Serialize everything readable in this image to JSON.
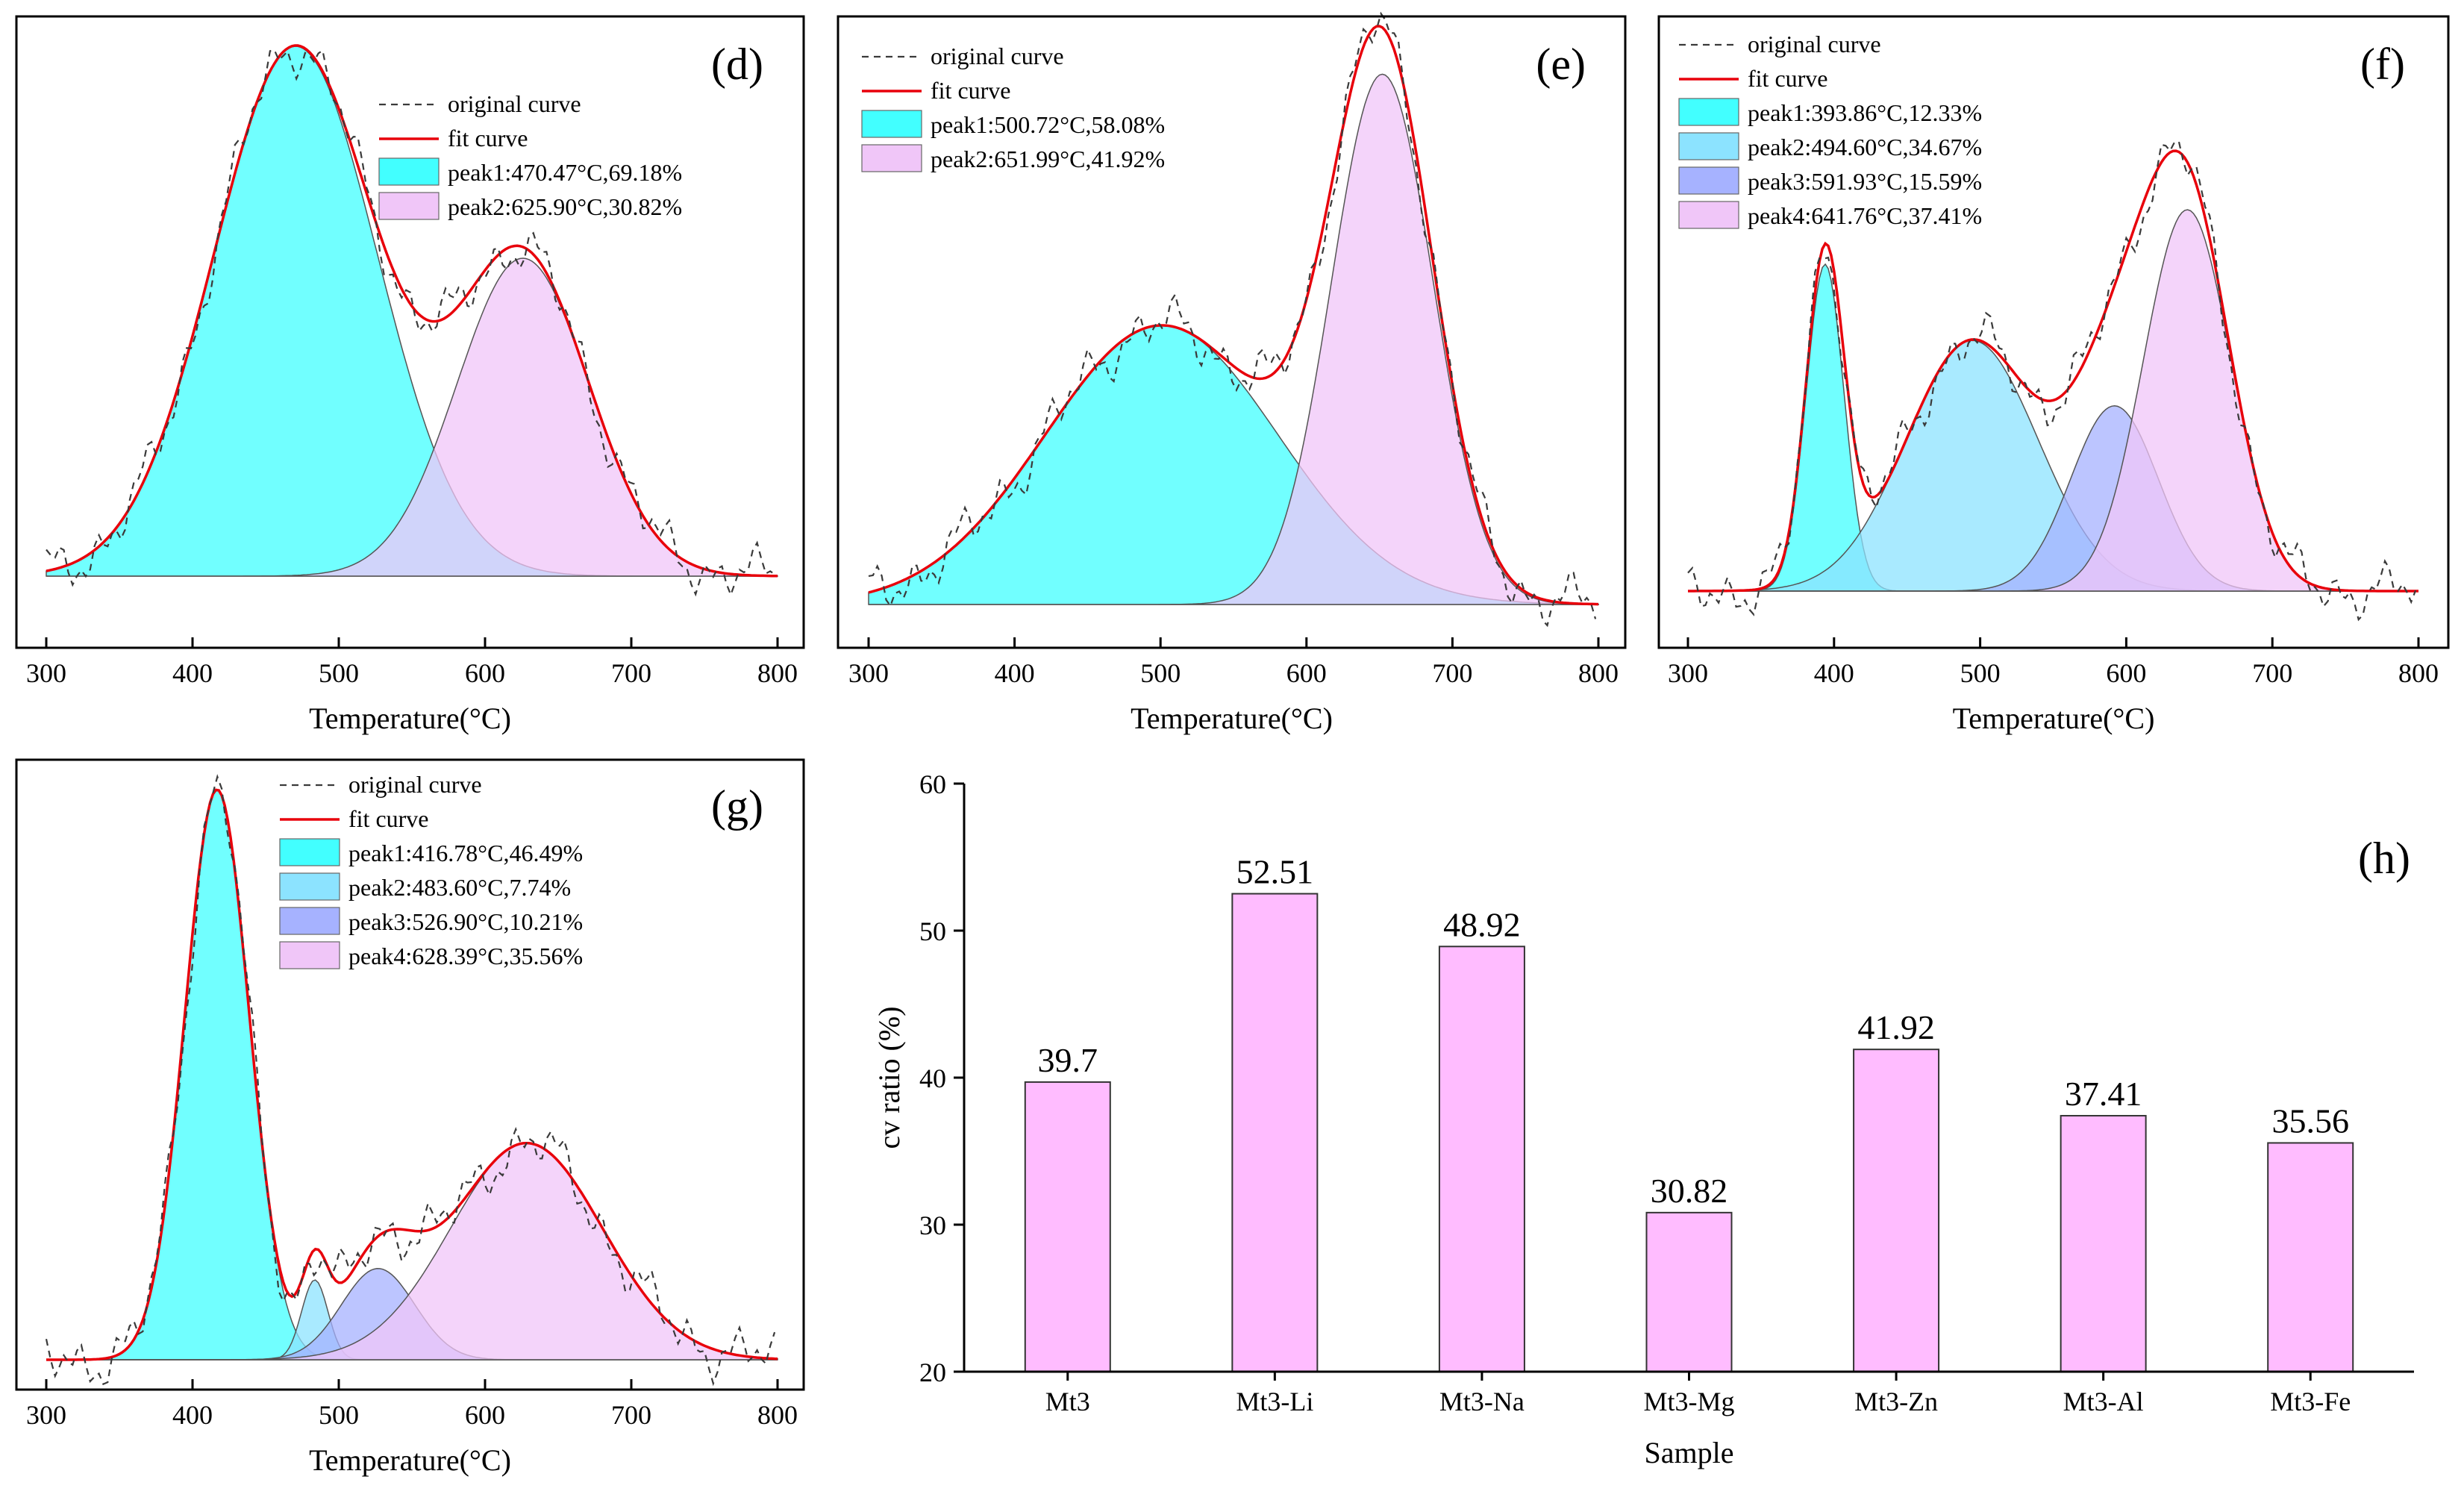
{
  "chart_data": [
    {
      "id": "d",
      "type": "area",
      "panel_label": "(d)",
      "xlabel": "Temperature(°C)",
      "xlim": [
        300,
        800
      ],
      "xticks": [
        300,
        400,
        500,
        600,
        700,
        800
      ],
      "ylim": [
        -0.14,
        1.17
      ],
      "legend": {
        "original": "original curve",
        "fit": "fit curve",
        "position": "top-center"
      },
      "peaks": [
        {
          "label": "peak1:470.47°C,69.18%",
          "center": 470.47,
          "sigma": 56,
          "amp": 1.0,
          "color": "#42ffff"
        },
        {
          "label": "peak2:625.90°C,30.82%",
          "center": 625.9,
          "sigma": 45,
          "amp": 0.6,
          "color": "#f0c6f8"
        }
      ]
    },
    {
      "id": "e",
      "type": "area",
      "panel_label": "(e)",
      "xlabel": "Temperature(°C)",
      "xlim": [
        300,
        800
      ],
      "xticks": [
        300,
        400,
        500,
        600,
        700,
        800
      ],
      "ylim": [
        -0.02,
        1.1
      ],
      "legend": {
        "original": "original curve",
        "fit": "fit curve",
        "position": "top-left"
      },
      "peaks": [
        {
          "label": "peak1:500.72°C,58.08%",
          "center": 500.72,
          "sigma": 80,
          "amp": 0.5,
          "color": "#42ffff"
        },
        {
          "label": "peak2:651.99°C,41.92%",
          "center": 651.99,
          "sigma": 35,
          "amp": 0.95,
          "color": "#f0c6f8"
        }
      ]
    },
    {
      "id": "f",
      "type": "area",
      "panel_label": "(f)",
      "xlabel": "Temperature(°C)",
      "xlim": [
        300,
        800
      ],
      "xticks": [
        300,
        400,
        500,
        600,
        700,
        800
      ],
      "ylim": [
        -0.05,
        1.2
      ],
      "legend": {
        "original": "original curve",
        "fit": "fit curve",
        "position": "top-left"
      },
      "peaks": [
        {
          "label": "peak1:393.86°C,12.33%",
          "center": 393.86,
          "sigma": 13,
          "amp": 0.6,
          "color": "#42ffff"
        },
        {
          "label": "peak2:494.60°C,34.67%",
          "center": 494.6,
          "sigma": 45,
          "amp": 0.46,
          "color": "#8ce3ff"
        },
        {
          "label": "peak3:591.93°C,15.59%",
          "center": 591.93,
          "sigma": 30,
          "amp": 0.34,
          "color": "#a6b2ff"
        },
        {
          "label": "peak4:641.76°C,37.41%",
          "center": 641.76,
          "sigma": 30,
          "amp": 0.7,
          "color": "#f0c6f8"
        }
      ]
    },
    {
      "id": "g",
      "type": "area",
      "panel_label": "(g)",
      "xlabel": "Temperature(°C)",
      "xlim": [
        300,
        800
      ],
      "xticks": [
        300,
        400,
        500,
        600,
        700,
        800
      ],
      "ylim": [
        -0.06,
        1.15
      ],
      "legend": {
        "original": "original curve",
        "fit": "fit curve",
        "position": "top-center"
      },
      "peaks": [
        {
          "label": "peak1:416.78°C,46.49%",
          "center": 416.78,
          "sigma": 22,
          "amp": 1.0,
          "color": "#42ffff"
        },
        {
          "label": "peak2:483.60°C,7.74%",
          "center": 483.6,
          "sigma": 9,
          "amp": 0.14,
          "color": "#8ce3ff"
        },
        {
          "label": "peak3:526.90°C,10.21%",
          "center": 526.9,
          "sigma": 25,
          "amp": 0.16,
          "color": "#a6b2ff"
        },
        {
          "label": "peak4:628.39°C,35.56%",
          "center": 628.39,
          "sigma": 52,
          "amp": 0.38,
          "color": "#f0c6f8"
        }
      ]
    },
    {
      "id": "h",
      "type": "bar",
      "panel_label": "(h)",
      "xlabel": "Sample",
      "ylabel": "cv ratio (%)",
      "ylim": [
        20,
        60
      ],
      "yticks": [
        20,
        30,
        40,
        50,
        60
      ],
      "bar_color": "#ffbcff",
      "categories": [
        "Mt3",
        "Mt3-Li",
        "Mt3-Na",
        "Mt3-Mg",
        "Mt3-Zn",
        "Mt3-Al",
        "Mt3-Fe"
      ],
      "values": [
        39.7,
        52.51,
        48.92,
        30.82,
        41.92,
        37.41,
        35.56
      ],
      "value_labels": [
        "39.7",
        "52.51",
        "48.92",
        "30.82",
        "41.92",
        "37.41",
        "35.56"
      ]
    }
  ]
}
